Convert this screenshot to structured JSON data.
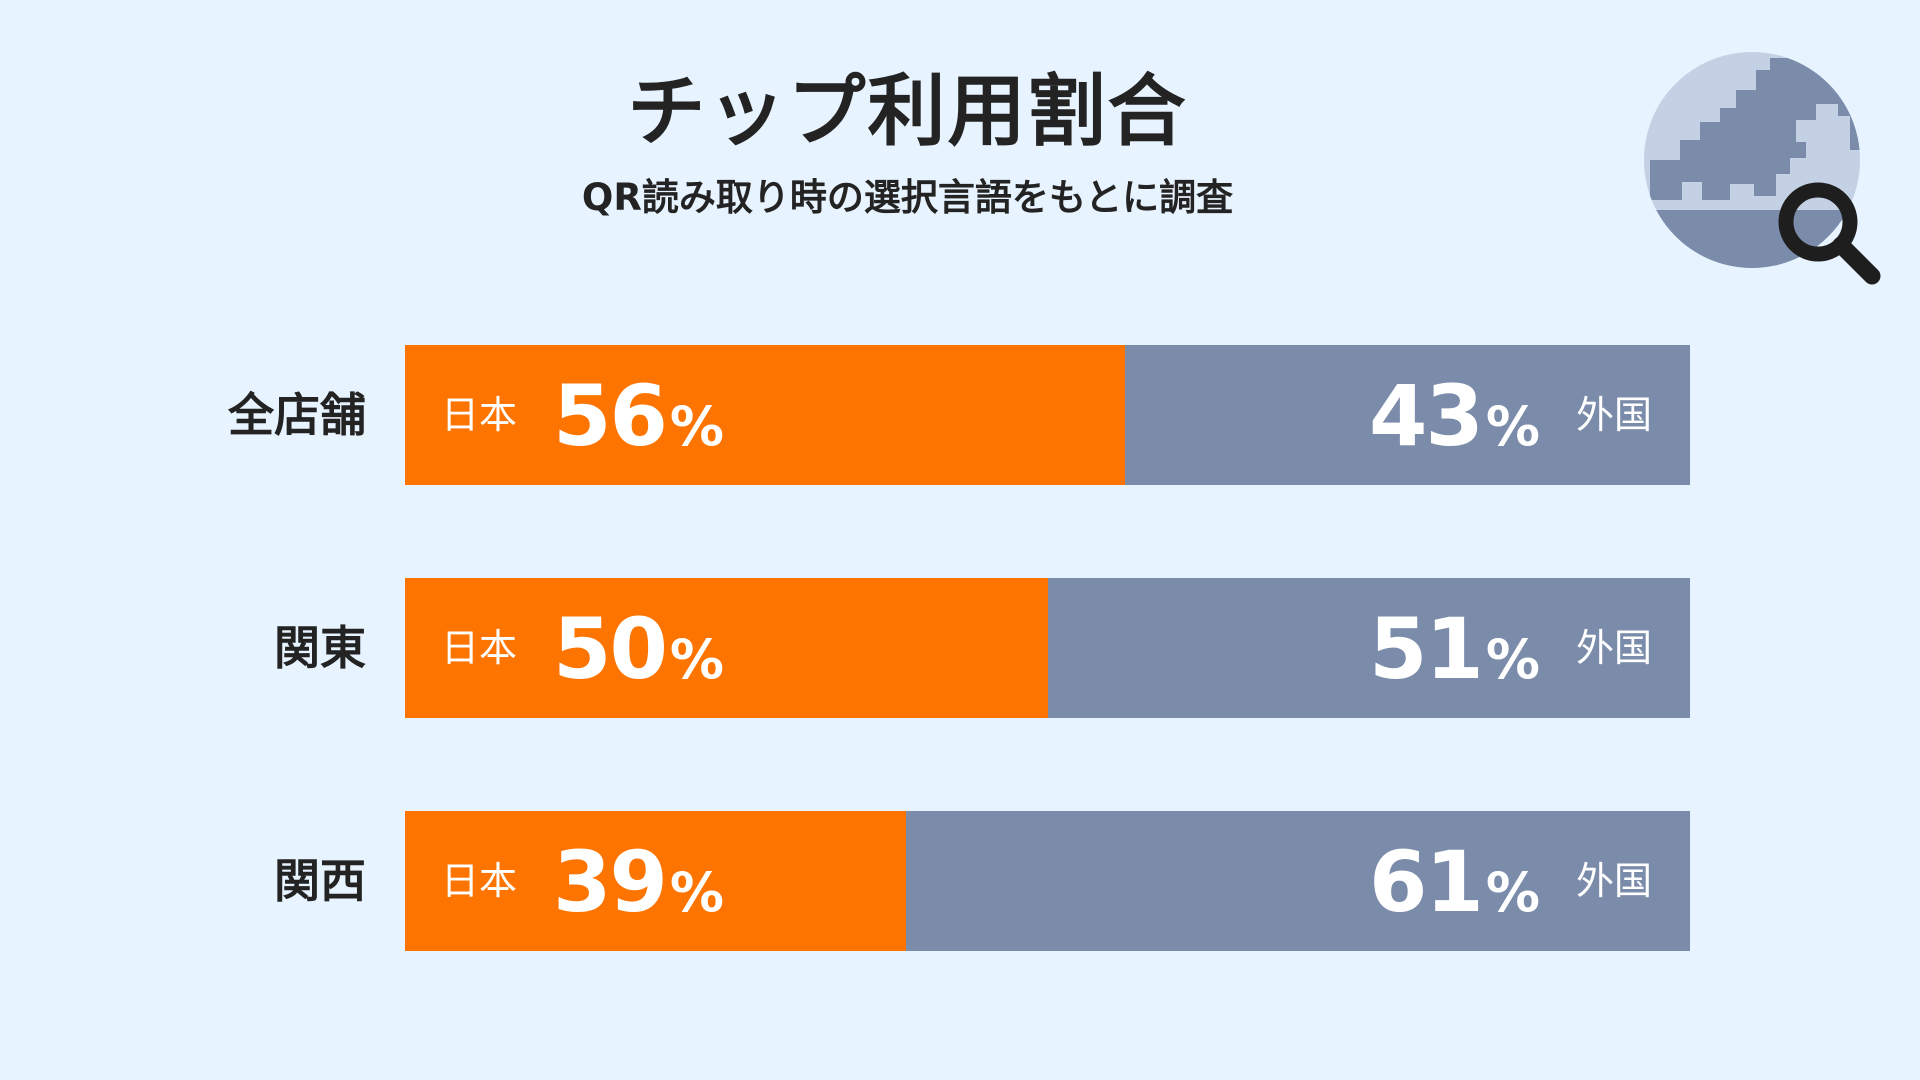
{
  "header": {
    "title": "チップ利用割合",
    "subtitle": "QR読み取り時の選択言語をもとに調査"
  },
  "icons": {
    "corner": "globe-magnifier-icon"
  },
  "colors": {
    "background": "#e7f3fe",
    "japan": "#fe7400",
    "foreign": "#7b8caa",
    "text": "#232323"
  },
  "chart_data": {
    "type": "bar",
    "orientation": "horizontal",
    "stacked": true,
    "categories": [
      "全店舗",
      "関東",
      "関西"
    ],
    "series": [
      {
        "name": "日本",
        "values": [
          56,
          50,
          39
        ]
      },
      {
        "name": "外国",
        "values": [
          43,
          51,
          61
        ]
      }
    ],
    "unit": "%",
    "title": "チップ利用割合",
    "subtitle": "QR読み取り時の選択言語をもとに調査",
    "xlim": [
      0,
      100
    ],
    "grid": false,
    "legend": "none"
  }
}
